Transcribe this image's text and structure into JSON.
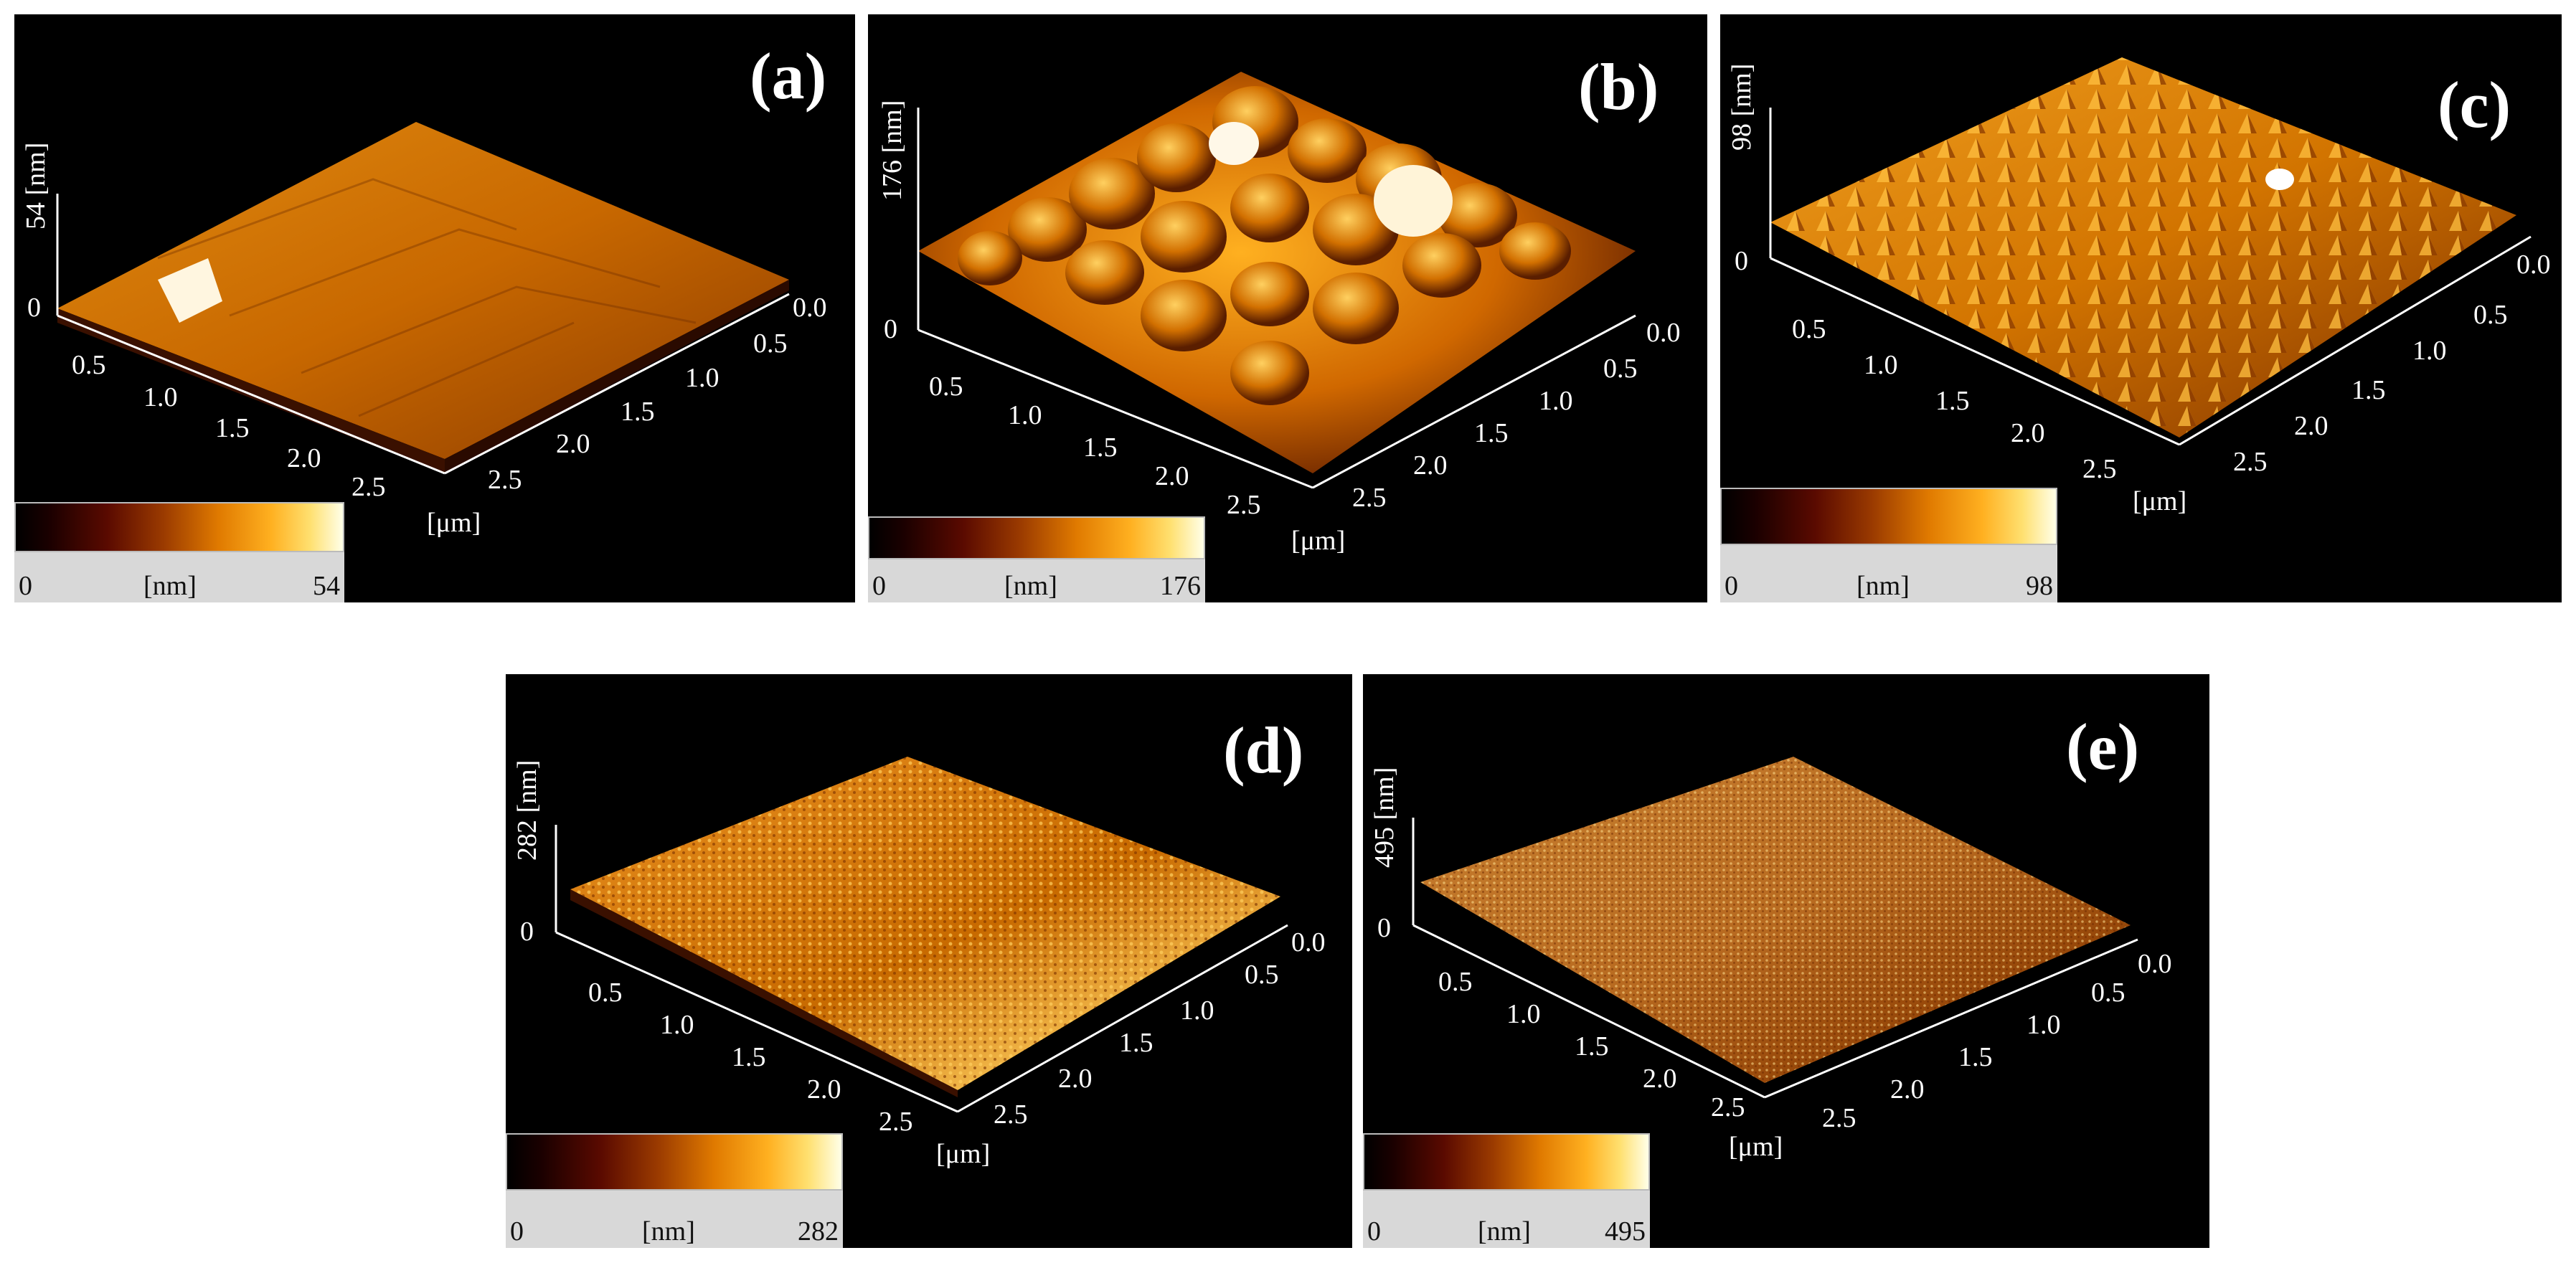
{
  "panels": [
    {
      "label": "(a)",
      "z_axis": "54 [nm]",
      "z_max": "54",
      "scale_min": "0",
      "scale_unit": "[nm]",
      "scale_max": "54",
      "x_ticks": [
        "0.5",
        "1.0",
        "1.5",
        "2.0",
        "2.5"
      ],
      "y_ticks": [
        "0.0",
        "0.5",
        "1.0",
        "1.5",
        "2.0",
        "2.5"
      ],
      "unit": "[μm]",
      "z_zero": "0"
    },
    {
      "label": "(b)",
      "z_axis": "176 [nm]",
      "z_max": "176",
      "scale_min": "0",
      "scale_unit": "[nm]",
      "scale_max": "176",
      "x_ticks": [
        "0.5",
        "1.0",
        "1.5",
        "2.0",
        "2.5"
      ],
      "y_ticks": [
        "0.0",
        "0.5",
        "1.0",
        "1.5",
        "2.0",
        "2.5"
      ],
      "unit": "[μm]",
      "z_zero": "0"
    },
    {
      "label": "(c)",
      "z_axis": "98 [nm]",
      "z_max": "98",
      "scale_min": "0",
      "scale_unit": "[nm]",
      "scale_max": "98",
      "x_ticks": [
        "0.5",
        "1.0",
        "1.5",
        "2.0",
        "2.5"
      ],
      "y_ticks": [
        "0.0",
        "0.5",
        "1.0",
        "1.5",
        "2.0",
        "2.5"
      ],
      "unit": "[μm]",
      "z_zero": "0"
    },
    {
      "label": "(d)",
      "z_axis": "282 [nm]",
      "z_max": "282",
      "scale_min": "0",
      "scale_unit": "[nm]",
      "scale_max": "282",
      "x_ticks": [
        "0.5",
        "1.0",
        "1.5",
        "2.0",
        "2.5"
      ],
      "y_ticks": [
        "0.0",
        "0.5",
        "1.0",
        "1.5",
        "2.0",
        "2.5"
      ],
      "unit": "[μm]",
      "z_zero": "0"
    },
    {
      "label": "(e)",
      "z_axis": "495 [nm]",
      "z_max": "495",
      "scale_min": "0",
      "scale_unit": "[nm]",
      "scale_max": "495",
      "x_ticks": [
        "0.5",
        "1.0",
        "1.5",
        "2.0",
        "2.5"
      ],
      "y_ticks": [
        "0.0",
        "0.5",
        "1.0",
        "1.5",
        "2.0",
        "2.5"
      ],
      "unit": "[μm]",
      "z_zero": "0"
    }
  ],
  "colors": {
    "background": "#000000",
    "surface_dark": "#7a3000",
    "surface_mid": "#d86a00",
    "surface_light": "#ffcc40",
    "highlight": "#ffffff"
  }
}
